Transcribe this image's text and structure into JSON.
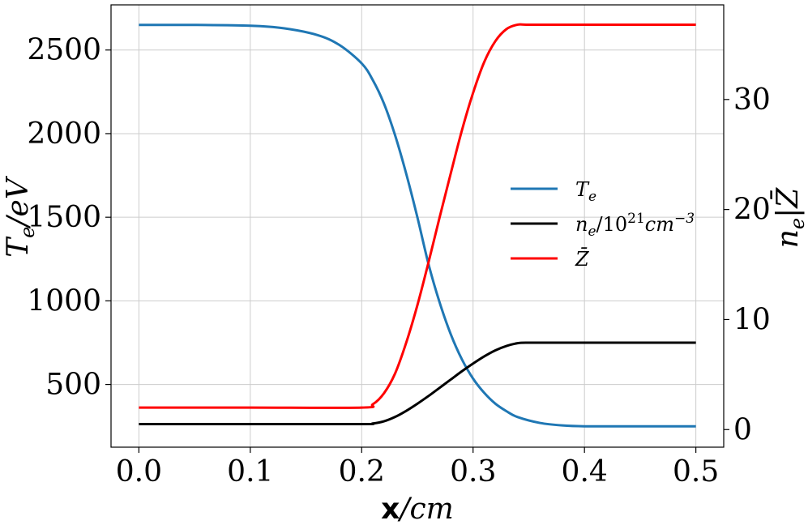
{
  "chart_data": {
    "type": "line",
    "x_axis": {
      "label_bold": "x",
      "label_rest": "/cm",
      "lim": [
        -0.025,
        0.525
      ],
      "ticks": [
        0.0,
        0.1,
        0.2,
        0.3,
        0.4,
        0.5
      ],
      "tick_labels": [
        "0.0",
        "0.1",
        "0.2",
        "0.3",
        "0.4",
        "0.5"
      ]
    },
    "y_left": {
      "label": "Te/eV",
      "lim": [
        125,
        2770
      ],
      "ticks": [
        500,
        1000,
        1500,
        2000,
        2500
      ],
      "tick_labels": [
        "500",
        "1000",
        "1500",
        "2000",
        "2500"
      ]
    },
    "y_right": {
      "label": "ne|Z̄",
      "lim": [
        -1.6,
        38.6
      ],
      "ticks": [
        0,
        10,
        20,
        30
      ],
      "tick_labels": [
        "0",
        "10",
        "20",
        "30"
      ]
    },
    "grid": true,
    "legend_position": "center-right",
    "series": [
      {
        "name": "Te",
        "axis": "left",
        "color": "#1f77b4",
        "x": [
          0.0,
          0.05,
          0.1,
          0.13,
          0.16,
          0.18,
          0.2,
          0.21,
          0.22,
          0.23,
          0.24,
          0.25,
          0.26,
          0.27,
          0.28,
          0.29,
          0.3,
          0.31,
          0.32,
          0.33,
          0.34,
          0.36,
          0.38,
          0.4,
          0.45,
          0.5
        ],
        "y": [
          2650,
          2650,
          2645,
          2630,
          2590,
          2530,
          2420,
          2320,
          2180,
          1990,
          1760,
          1500,
          1220,
          990,
          800,
          650,
          535,
          450,
          385,
          340,
          305,
          270,
          255,
          250,
          250,
          250
        ]
      },
      {
        "name": "ne/10^21 cm^-3",
        "axis": "right",
        "color": "#000000",
        "x": [
          0.0,
          0.1,
          0.2,
          0.21,
          0.22,
          0.23,
          0.24,
          0.25,
          0.26,
          0.27,
          0.28,
          0.29,
          0.3,
          0.31,
          0.32,
          0.33,
          0.34,
          0.35,
          0.4,
          0.5
        ],
        "y": [
          0.5,
          0.5,
          0.5,
          0.55,
          0.75,
          1.15,
          1.7,
          2.35,
          3.05,
          3.8,
          4.55,
          5.3,
          6.0,
          6.65,
          7.2,
          7.6,
          7.85,
          7.9,
          7.9,
          7.9
        ]
      },
      {
        "name": "Z̄",
        "axis": "right",
        "color": "#ff0000",
        "x": [
          0.0,
          0.1,
          0.2,
          0.21,
          0.22,
          0.23,
          0.24,
          0.25,
          0.26,
          0.27,
          0.28,
          0.29,
          0.3,
          0.31,
          0.32,
          0.33,
          0.34,
          0.35,
          0.4,
          0.5
        ],
        "y": [
          2.0,
          2.0,
          2.0,
          2.3,
          3.3,
          5.1,
          7.9,
          11.3,
          15.2,
          19.3,
          23.3,
          27.2,
          30.6,
          33.4,
          35.3,
          36.4,
          36.8,
          36.8,
          36.8,
          36.8
        ]
      }
    ],
    "legend": [
      {
        "base": "T",
        "sub": "e",
        "sup": "",
        "tail": "",
        "tail_sub": "",
        "color": "#1f77b4"
      },
      {
        "base": "n",
        "sub": "e",
        "mid": "/10",
        "sup": "21",
        "tail": "cm",
        "tail_sup": "−3",
        "color": "#000000"
      },
      {
        "base": "Z̄",
        "sub": "",
        "sup": "",
        "tail": "",
        "tail_sub": "",
        "color": "#ff0000"
      }
    ]
  }
}
